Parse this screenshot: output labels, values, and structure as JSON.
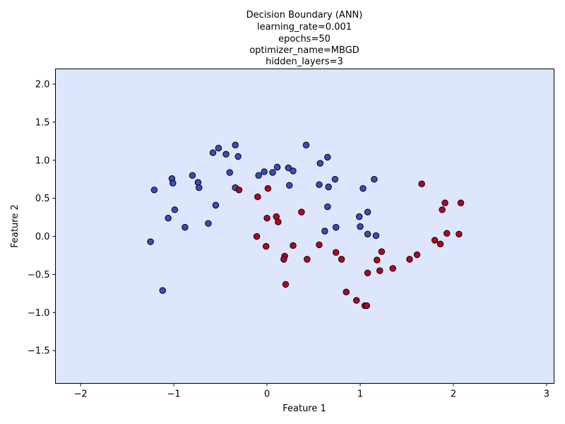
{
  "chart_data": {
    "type": "scatter",
    "title_lines": [
      "Decision Boundary (ANN)",
      "learning_rate=0.001",
      "epochs=50",
      "optimizer_name=MBGD",
      "hidden_layers=3"
    ],
    "xlabel": "Feature 1",
    "ylabel": "Feature 2",
    "xlim": [
      -2.27,
      3.08
    ],
    "ylim": [
      -1.93,
      2.2
    ],
    "xticks": [
      -2,
      -1,
      0,
      1,
      2,
      3
    ],
    "yticks": [
      -1.5,
      -1.0,
      -0.5,
      0.0,
      0.5,
      1.0,
      1.5,
      2.0
    ],
    "grid": false,
    "background_color": "#dde6fc",
    "series": [
      {
        "color": "#3b4cc0",
        "points": [
          [
            -1.21,
            0.61
          ],
          [
            -1.02,
            0.76
          ],
          [
            -1.01,
            0.7
          ],
          [
            -0.99,
            0.35
          ],
          [
            -1.06,
            0.24
          ],
          [
            -0.88,
            0.12
          ],
          [
            -0.8,
            0.8
          ],
          [
            -0.74,
            0.71
          ],
          [
            -0.73,
            0.64
          ],
          [
            -0.63,
            0.17
          ],
          [
            -0.58,
            1.1
          ],
          [
            -0.55,
            0.41
          ],
          [
            -0.52,
            1.16
          ],
          [
            -0.44,
            1.08
          ],
          [
            -0.4,
            0.84
          ],
          [
            -0.34,
            1.2
          ],
          [
            -0.34,
            0.64
          ],
          [
            -0.31,
            1.05
          ],
          [
            -0.09,
            0.8
          ],
          [
            -0.03,
            0.85
          ],
          [
            0.06,
            0.84
          ],
          [
            0.11,
            0.91
          ],
          [
            0.23,
            0.9
          ],
          [
            0.28,
            0.86
          ],
          [
            0.24,
            0.67
          ],
          [
            0.42,
            1.2
          ],
          [
            0.57,
            0.96
          ],
          [
            0.56,
            0.68
          ],
          [
            0.65,
            1.04
          ],
          [
            0.66,
            0.65
          ],
          [
            0.73,
            0.75
          ],
          [
            0.65,
            0.39
          ],
          [
            0.62,
            0.07
          ],
          [
            0.74,
            0.12
          ],
          [
            0.99,
            0.26
          ],
          [
            1.0,
            0.13
          ],
          [
            1.03,
            0.63
          ],
          [
            1.08,
            0.32
          ],
          [
            1.08,
            0.03
          ],
          [
            1.15,
            0.75
          ],
          [
            1.17,
            0.01
          ],
          [
            -1.25,
            -0.07
          ],
          [
            -1.12,
            -0.71
          ]
        ]
      },
      {
        "color": "#b40426",
        "points": [
          [
            -0.3,
            0.61
          ],
          [
            0.01,
            0.63
          ],
          [
            -0.1,
            0.52
          ],
          [
            0.0,
            0.24
          ],
          [
            0.1,
            0.26
          ],
          [
            0.12,
            0.19
          ],
          [
            0.37,
            0.32
          ],
          [
            -0.11,
            0.0
          ],
          [
            -0.01,
            -0.13
          ],
          [
            0.28,
            -0.12
          ],
          [
            0.19,
            -0.26
          ],
          [
            0.18,
            -0.3
          ],
          [
            0.2,
            -0.63
          ],
          [
            0.43,
            -0.3
          ],
          [
            0.56,
            -0.11
          ],
          [
            0.74,
            -0.21
          ],
          [
            0.8,
            -0.3
          ],
          [
            0.85,
            -0.73
          ],
          [
            0.96,
            -0.84
          ],
          [
            1.05,
            -0.91
          ],
          [
            1.07,
            -0.91
          ],
          [
            1.08,
            -0.48
          ],
          [
            1.18,
            -0.31
          ],
          [
            1.21,
            -0.45
          ],
          [
            1.23,
            -0.2
          ],
          [
            1.35,
            -0.42
          ],
          [
            1.53,
            -0.3
          ],
          [
            1.61,
            -0.24
          ],
          [
            1.66,
            0.69
          ],
          [
            1.8,
            -0.05
          ],
          [
            1.86,
            -0.1
          ],
          [
            1.88,
            0.35
          ],
          [
            1.91,
            0.44
          ],
          [
            1.93,
            0.04
          ],
          [
            2.06,
            0.03
          ],
          [
            2.08,
            0.44
          ]
        ]
      }
    ]
  }
}
